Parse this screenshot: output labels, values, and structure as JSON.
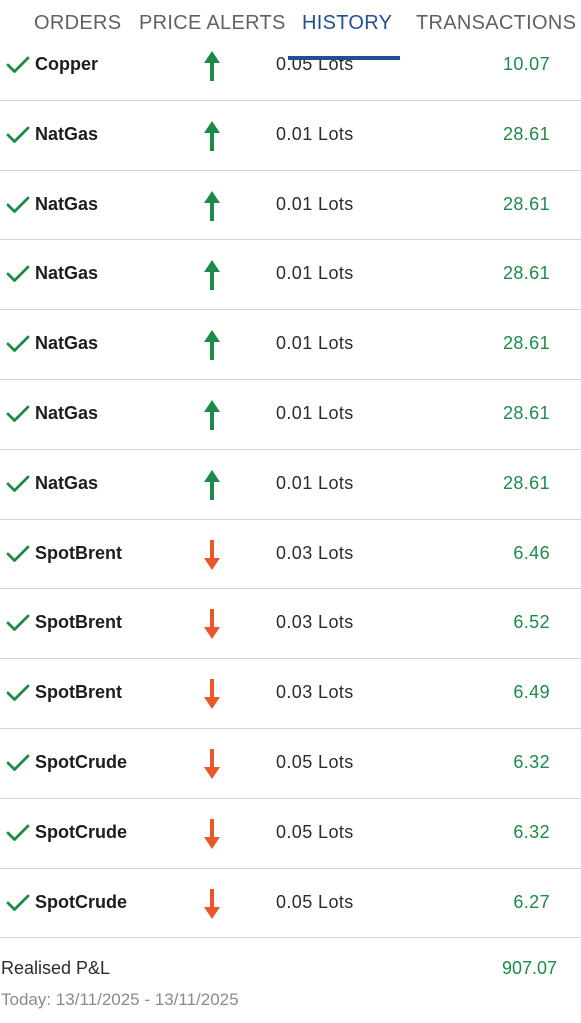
{
  "tabs": [
    {
      "label": "ORDERS",
      "active": false
    },
    {
      "label": "PRICE ALERTS",
      "active": false
    },
    {
      "label": "HISTORY",
      "active": true
    },
    {
      "label": "TRANSACTIONS",
      "active": false
    }
  ],
  "colors": {
    "accent": "#244f8f",
    "profit": "#1e8a47",
    "buy_arrow": "#1e8a47",
    "sell_arrow": "#e8562a"
  },
  "history": [
    {
      "symbol": "Copper",
      "direction": "up",
      "lots": "0.05 Lots",
      "pl": "10.07"
    },
    {
      "symbol": "NatGas",
      "direction": "up",
      "lots": "0.01 Lots",
      "pl": "28.61"
    },
    {
      "symbol": "NatGas",
      "direction": "up",
      "lots": "0.01 Lots",
      "pl": "28.61"
    },
    {
      "symbol": "NatGas",
      "direction": "up",
      "lots": "0.01 Lots",
      "pl": "28.61"
    },
    {
      "symbol": "NatGas",
      "direction": "up",
      "lots": "0.01 Lots",
      "pl": "28.61"
    },
    {
      "symbol": "NatGas",
      "direction": "up",
      "lots": "0.01 Lots",
      "pl": "28.61"
    },
    {
      "symbol": "NatGas",
      "direction": "up",
      "lots": "0.01 Lots",
      "pl": "28.61"
    },
    {
      "symbol": "SpotBrent",
      "direction": "down",
      "lots": "0.03 Lots",
      "pl": "6.46"
    },
    {
      "symbol": "SpotBrent",
      "direction": "down",
      "lots": "0.03 Lots",
      "pl": "6.52"
    },
    {
      "symbol": "SpotBrent",
      "direction": "down",
      "lots": "0.03 Lots",
      "pl": "6.49"
    },
    {
      "symbol": "SpotCrude",
      "direction": "down",
      "lots": "0.05 Lots",
      "pl": "6.32"
    },
    {
      "symbol": "SpotCrude",
      "direction": "down",
      "lots": "0.05 Lots",
      "pl": "6.32"
    },
    {
      "symbol": "SpotCrude",
      "direction": "down",
      "lots": "0.05 Lots",
      "pl": "6.27"
    }
  ],
  "summary": {
    "label": "Realised P&L",
    "value": "907.07",
    "date_range": "Today: 13/11/2025 - 13/11/2025"
  }
}
